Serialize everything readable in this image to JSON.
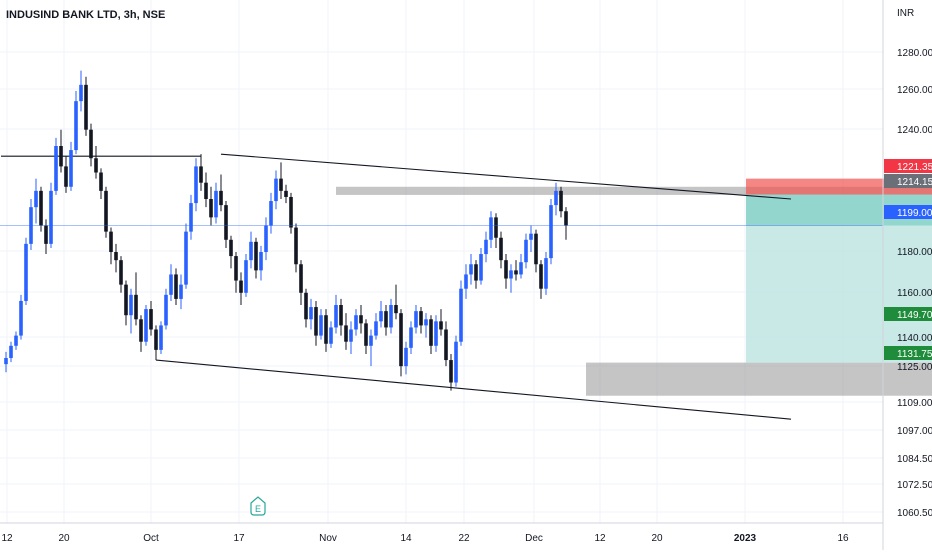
{
  "chart_data": {
    "type": "candlestick",
    "title": "INDUSIND BANK LTD, 3h, NSE",
    "currency": "INR",
    "ylim": [
      1057,
      1290
    ],
    "y_ticks": [
      "1280.00",
      "1260.00",
      "1240.00",
      "1180.00",
      "1160.00",
      "1140.00",
      "1125.00",
      "1109.00",
      "1097.00",
      "1084.50",
      "1072.50",
      "1060.50"
    ],
    "x_ticks": [
      "12",
      "20",
      "Oct",
      "17",
      "Nov",
      "14",
      "22",
      "Dec",
      "12",
      "20",
      "2023",
      "16"
    ],
    "event_marker": "E",
    "colors": {
      "up": "#2962ff",
      "down": "#131722",
      "target": "#b2dfdb",
      "target_strong": "#7fcfc6",
      "stop": "#ef5350",
      "zone": "#9e9e9e",
      "last_price": "#2962ff",
      "level": "#1e8c3a",
      "stop_badge": "#f23645",
      "entry_badge": "#6b6f78"
    },
    "price_badges": [
      {
        "label": "1221.35",
        "kind": "stop",
        "value": 1221.35
      },
      {
        "label": "1214.15",
        "kind": "entry",
        "value": 1214.15
      },
      {
        "label": "1199.00",
        "kind": "last",
        "value": 1199.0
      },
      {
        "label": "1149.70",
        "kind": "level",
        "value": 1149.7
      },
      {
        "label": "1131.75",
        "kind": "level",
        "value": 1131.75
      }
    ],
    "candles": [
      [
        1131,
        1137,
        1127,
        1134
      ],
      [
        1134,
        1142,
        1132,
        1140
      ],
      [
        1140,
        1147,
        1138,
        1145
      ],
      [
        1145,
        1165,
        1143,
        1162
      ],
      [
        1162,
        1193,
        1160,
        1190
      ],
      [
        1190,
        1212,
        1187,
        1208
      ],
      [
        1208,
        1222,
        1200,
        1216
      ],
      [
        1216,
        1218,
        1196,
        1199
      ],
      [
        1199,
        1202,
        1185,
        1190
      ],
      [
        1190,
        1220,
        1188,
        1216
      ],
      [
        1216,
        1242,
        1214,
        1238
      ],
      [
        1238,
        1246,
        1225,
        1228
      ],
      [
        1228,
        1233,
        1215,
        1218
      ],
      [
        1218,
        1240,
        1216,
        1236
      ],
      [
        1236,
        1265,
        1234,
        1260
      ],
      [
        1260,
        1275,
        1255,
        1268
      ],
      [
        1268,
        1272,
        1243,
        1246
      ],
      [
        1246,
        1249,
        1228,
        1232
      ],
      [
        1232,
        1238,
        1222,
        1225
      ],
      [
        1225,
        1227,
        1212,
        1216
      ],
      [
        1216,
        1218,
        1193,
        1196
      ],
      [
        1196,
        1198,
        1180,
        1186
      ],
      [
        1186,
        1190,
        1176,
        1182
      ],
      [
        1182,
        1184,
        1166,
        1170
      ],
      [
        1170,
        1172,
        1150,
        1155
      ],
      [
        1155,
        1168,
        1146,
        1165
      ],
      [
        1165,
        1176,
        1150,
        1153
      ],
      [
        1153,
        1155,
        1137,
        1142
      ],
      [
        1142,
        1160,
        1140,
        1158
      ],
      [
        1158,
        1162,
        1145,
        1148
      ],
      [
        1148,
        1150,
        1133,
        1138
      ],
      [
        1138,
        1152,
        1136,
        1150
      ],
      [
        1150,
        1168,
        1148,
        1165
      ],
      [
        1165,
        1180,
        1162,
        1175
      ],
      [
        1175,
        1178,
        1160,
        1163
      ],
      [
        1163,
        1175,
        1158,
        1170
      ],
      [
        1170,
        1200,
        1168,
        1196
      ],
      [
        1196,
        1214,
        1192,
        1210
      ],
      [
        1210,
        1232,
        1206,
        1228
      ],
      [
        1228,
        1234,
        1216,
        1220
      ],
      [
        1220,
        1225,
        1208,
        1212
      ],
      [
        1212,
        1218,
        1199,
        1203
      ],
      [
        1203,
        1220,
        1200,
        1216
      ],
      [
        1216,
        1224,
        1206,
        1209
      ],
      [
        1209,
        1211,
        1188,
        1192
      ],
      [
        1192,
        1194,
        1178,
        1184
      ],
      [
        1184,
        1186,
        1166,
        1172
      ],
      [
        1172,
        1176,
        1160,
        1166
      ],
      [
        1166,
        1185,
        1164,
        1182
      ],
      [
        1182,
        1196,
        1178,
        1191
      ],
      [
        1191,
        1193,
        1173,
        1177
      ],
      [
        1177,
        1189,
        1172,
        1186
      ],
      [
        1186,
        1203,
        1182,
        1199
      ],
      [
        1199,
        1215,
        1195,
        1211
      ],
      [
        1211,
        1226,
        1207,
        1222
      ],
      [
        1222,
        1230,
        1212,
        1216
      ],
      [
        1216,
        1219,
        1210,
        1213
      ],
      [
        1213,
        1215,
        1195,
        1198
      ],
      [
        1198,
        1200,
        1176,
        1180
      ],
      [
        1180,
        1182,
        1160,
        1166
      ],
      [
        1166,
        1168,
        1149,
        1153
      ],
      [
        1153,
        1163,
        1148,
        1159
      ],
      [
        1159,
        1162,
        1140,
        1145
      ],
      [
        1145,
        1158,
        1143,
        1155
      ],
      [
        1155,
        1158,
        1137,
        1141
      ],
      [
        1141,
        1152,
        1139,
        1149
      ],
      [
        1149,
        1165,
        1146,
        1160
      ],
      [
        1160,
        1163,
        1145,
        1150
      ],
      [
        1150,
        1156,
        1138,
        1142
      ],
      [
        1142,
        1152,
        1136,
        1148
      ],
      [
        1148,
        1158,
        1145,
        1155
      ],
      [
        1155,
        1160,
        1146,
        1151
      ],
      [
        1151,
        1153,
        1136,
        1140
      ],
      [
        1140,
        1148,
        1130,
        1145
      ],
      [
        1145,
        1156,
        1143,
        1152
      ],
      [
        1152,
        1162,
        1149,
        1157
      ],
      [
        1157,
        1160,
        1145,
        1149
      ],
      [
        1149,
        1163,
        1146,
        1160
      ],
      [
        1160,
        1170,
        1153,
        1156
      ],
      [
        1156,
        1158,
        1125,
        1130
      ],
      [
        1130,
        1142,
        1126,
        1139
      ],
      [
        1139,
        1152,
        1136,
        1149
      ],
      [
        1149,
        1160,
        1146,
        1157
      ],
      [
        1157,
        1159,
        1146,
        1150
      ],
      [
        1150,
        1156,
        1144,
        1153
      ],
      [
        1153,
        1155,
        1136,
        1140
      ],
      [
        1140,
        1155,
        1137,
        1152
      ],
      [
        1152,
        1158,
        1145,
        1148
      ],
      [
        1148,
        1152,
        1130,
        1133
      ],
      [
        1133,
        1136,
        1118,
        1122
      ],
      [
        1122,
        1145,
        1120,
        1142
      ],
      [
        1142,
        1172,
        1140,
        1168
      ],
      [
        1168,
        1180,
        1163,
        1175
      ],
      [
        1175,
        1185,
        1170,
        1180
      ],
      [
        1180,
        1182,
        1168,
        1172
      ],
      [
        1172,
        1188,
        1170,
        1185
      ],
      [
        1185,
        1196,
        1181,
        1192
      ],
      [
        1192,
        1206,
        1188,
        1203
      ],
      [
        1203,
        1205,
        1188,
        1193
      ],
      [
        1193,
        1196,
        1178,
        1182
      ],
      [
        1182,
        1185,
        1168,
        1173
      ],
      [
        1173,
        1180,
        1166,
        1177
      ],
      [
        1177,
        1182,
        1172,
        1175
      ],
      [
        1175,
        1185,
        1173,
        1181
      ],
      [
        1181,
        1195,
        1178,
        1192
      ],
      [
        1192,
        1199,
        1186,
        1195
      ],
      [
        1195,
        1197,
        1176,
        1180
      ],
      [
        1180,
        1182,
        1163,
        1168
      ],
      [
        1168,
        1186,
        1165,
        1183
      ],
      [
        1183,
        1212,
        1180,
        1209
      ],
      [
        1209,
        1220,
        1204,
        1216
      ],
      [
        1216,
        1218,
        1203,
        1206
      ],
      [
        1206,
        1208,
        1192,
        1199
      ]
    ],
    "trendlines": [
      {
        "from": [
          -1,
          1233
        ],
        "to": [
          39,
          1233
        ]
      },
      {
        "from": [
          43,
          1234
        ],
        "to": [
          157,
          1212
        ]
      },
      {
        "from": [
          30,
          1133
        ],
        "to": [
          157,
          1104
        ]
      }
    ],
    "zones": [
      {
        "kind": "resistance",
        "x0": 66,
        "x1": 190,
        "y0": 1218,
        "y1": 1214
      },
      {
        "kind": "support",
        "x0": 116,
        "x1": 208,
        "y0": 1131.75,
        "y1": 1115.5
      }
    ],
    "position": {
      "x0": 148,
      "x1": 186,
      "stop_top": 1222,
      "entry": 1214.15,
      "target": 1131.75
    },
    "last_price": 1199.0
  }
}
